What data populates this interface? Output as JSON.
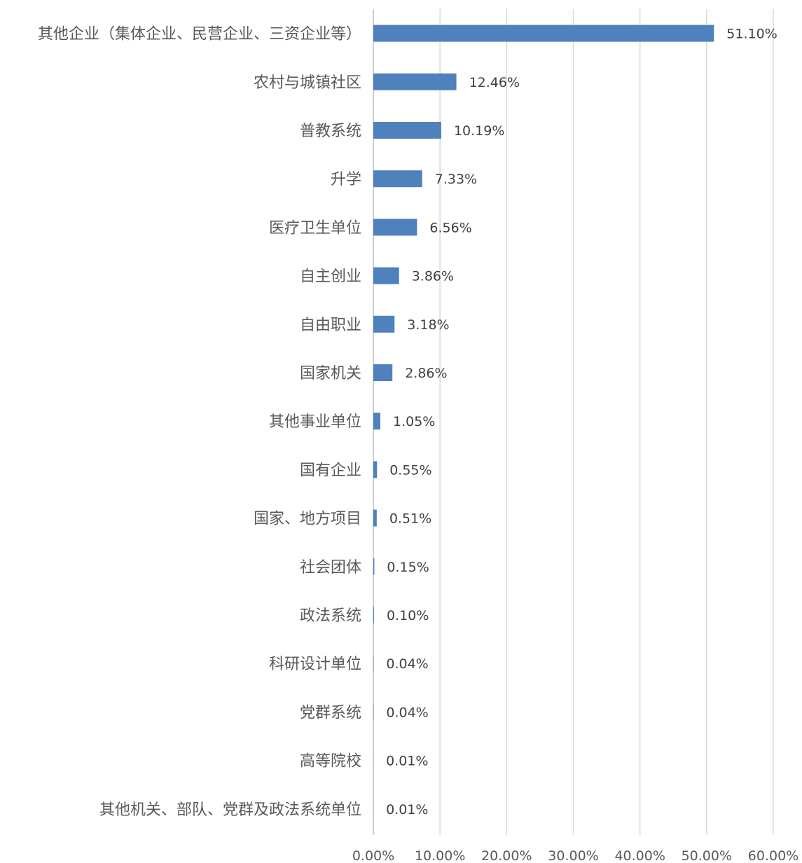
{
  "chart_data": {
    "type": "bar",
    "orientation": "horizontal",
    "title": "",
    "xlabel": "",
    "ylabel": "",
    "categories": [
      "其他企业（集体企业、民营企业、三资企业等）",
      "农村与城镇社区",
      "普教系统",
      "升学",
      "医疗卫生单位",
      "自主创业",
      "自由职业",
      "国家机关",
      "其他事业单位",
      "国有企业",
      "国家、地方项目",
      "社会团体",
      "政法系统",
      "科研设计单位",
      "党群系统",
      "高等院校",
      "其他机关、部队、党群及政法系统单位"
    ],
    "values": [
      51.1,
      12.46,
      10.19,
      7.33,
      6.56,
      3.86,
      3.18,
      2.86,
      1.05,
      0.55,
      0.51,
      0.15,
      0.1,
      0.04,
      0.04,
      0.01,
      0.01
    ],
    "value_labels": [
      "51.10%",
      "12.46%",
      "10.19%",
      "7.33%",
      "6.56%",
      "3.86%",
      "3.18%",
      "2.86%",
      "1.05%",
      "0.55%",
      "0.51%",
      "0.15%",
      "0.10%",
      "0.04%",
      "0.04%",
      "0.01%",
      "0.01%"
    ],
    "xlim": [
      0,
      60
    ],
    "ticks": [
      0,
      10,
      20,
      30,
      40,
      50,
      60
    ],
    "tick_labels": [
      "0.00%",
      "10.00%",
      "20.00%",
      "30.00%",
      "40.00%",
      "50.00%",
      "60.00%"
    ],
    "grid": true,
    "legend": "none",
    "bar_color": "#4f81bd"
  }
}
